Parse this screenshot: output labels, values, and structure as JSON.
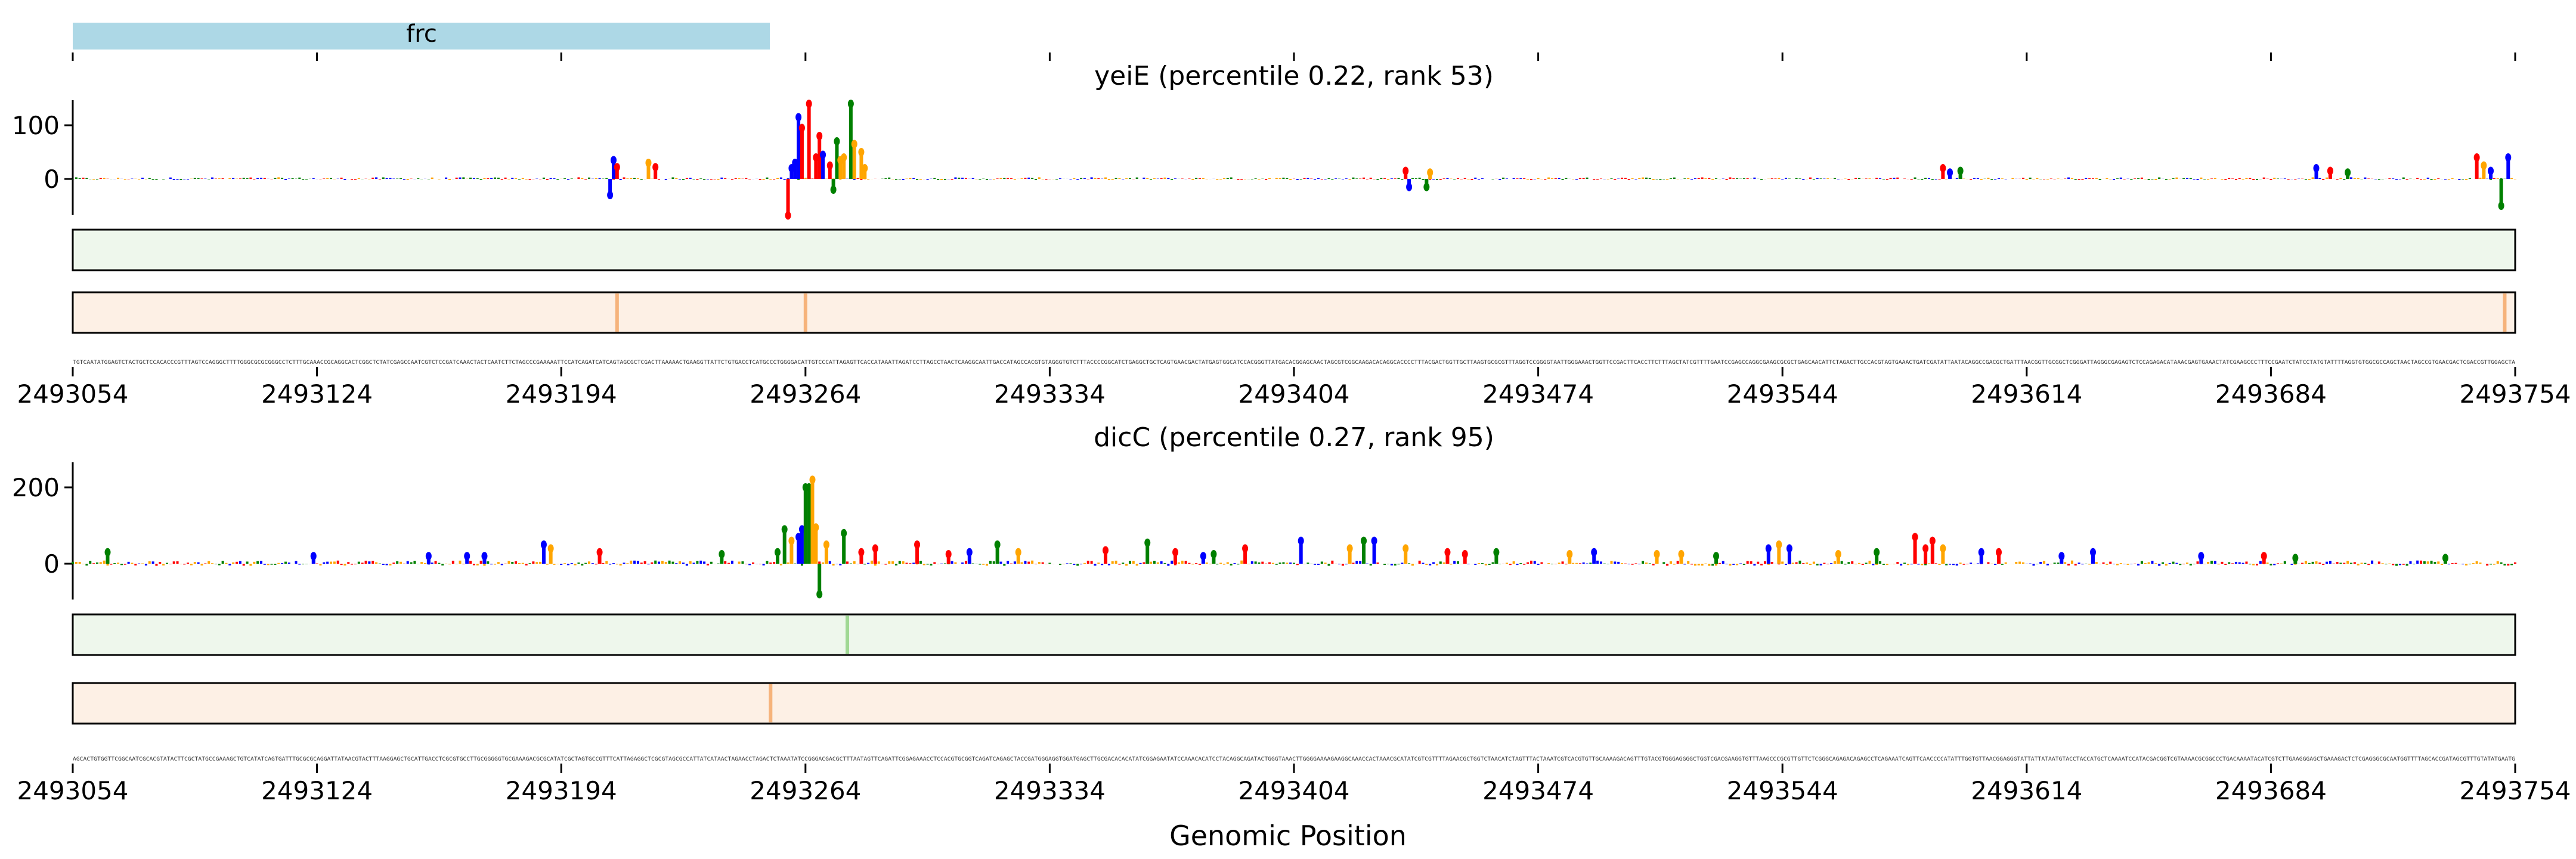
{
  "figure": {
    "annotation_track": {
      "label": "frc",
      "color": "#add8e6"
    },
    "xlabel": "Genomic Position"
  },
  "chart_data": [
    {
      "type": "line",
      "title": "yeiE (percentile 0.22, rank 53)",
      "xlabel": "",
      "ylabel": "",
      "xlim": [
        2493054,
        2493754
      ],
      "ylim": [
        -40,
        150
      ],
      "x_ticks": [
        2493054,
        2493124,
        2493194,
        2493264,
        2493334,
        2493404,
        2493474,
        2493544,
        2493614,
        2493684,
        2493754
      ],
      "y_ticks": [
        0,
        100
      ],
      "bases": [
        "A",
        "C",
        "G",
        "T"
      ],
      "base_colors": {
        "A": "#ff0000",
        "C": "#0000ff",
        "G": "#008000",
        "T": "#ffa500"
      },
      "peaks": [
        {
          "x": 2493208,
          "y": -30,
          "base": "C"
        },
        {
          "x": 2493209,
          "y": 35,
          "base": "C"
        },
        {
          "x": 2493210,
          "y": 22,
          "base": "A"
        },
        {
          "x": 2493219,
          "y": 30,
          "base": "T"
        },
        {
          "x": 2493221,
          "y": 22,
          "base": "A"
        },
        {
          "x": 2493259,
          "y": -68,
          "base": "A"
        },
        {
          "x": 2493260,
          "y": 20,
          "base": "C"
        },
        {
          "x": 2493261,
          "y": 30,
          "base": "C"
        },
        {
          "x": 2493262,
          "y": 115,
          "base": "C"
        },
        {
          "x": 2493263,
          "y": 95,
          "base": "A"
        },
        {
          "x": 2493265,
          "y": 140,
          "base": "A"
        },
        {
          "x": 2493267,
          "y": 40,
          "base": "A"
        },
        {
          "x": 2493268,
          "y": 80,
          "base": "A"
        },
        {
          "x": 2493269,
          "y": 45,
          "base": "C"
        },
        {
          "x": 2493271,
          "y": 25,
          "base": "A"
        },
        {
          "x": 2493272,
          "y": -20,
          "base": "G"
        },
        {
          "x": 2493273,
          "y": 70,
          "base": "G"
        },
        {
          "x": 2493274,
          "y": 35,
          "base": "T"
        },
        {
          "x": 2493275,
          "y": 40,
          "base": "T"
        },
        {
          "x": 2493277,
          "y": 140,
          "base": "G"
        },
        {
          "x": 2493278,
          "y": 65,
          "base": "T"
        },
        {
          "x": 2493280,
          "y": 50,
          "base": "T"
        },
        {
          "x": 2493281,
          "y": 20,
          "base": "T"
        },
        {
          "x": 2493436,
          "y": 15,
          "base": "A"
        },
        {
          "x": 2493437,
          "y": -15,
          "base": "C"
        },
        {
          "x": 2493442,
          "y": -15,
          "base": "G"
        },
        {
          "x": 2493443,
          "y": 12,
          "base": "T"
        },
        {
          "x": 2493590,
          "y": 20,
          "base": "A"
        },
        {
          "x": 2493592,
          "y": 12,
          "base": "C"
        },
        {
          "x": 2493595,
          "y": 15,
          "base": "G"
        },
        {
          "x": 2493697,
          "y": 20,
          "base": "C"
        },
        {
          "x": 2493701,
          "y": 15,
          "base": "A"
        },
        {
          "x": 2493706,
          "y": 12,
          "base": "G"
        },
        {
          "x": 2493743,
          "y": 40,
          "base": "A"
        },
        {
          "x": 2493745,
          "y": 25,
          "base": "T"
        },
        {
          "x": 2493747,
          "y": 15,
          "base": "C"
        },
        {
          "x": 2493750,
          "y": -50,
          "base": "G"
        },
        {
          "x": 2493752,
          "y": 40,
          "base": "C"
        }
      ],
      "heatmaps": [
        {
          "color": "#eef7ec",
          "hot": []
        },
        {
          "color": "#fdf0e5",
          "hot": [
            2493210,
            2493264,
            2493751
          ]
        }
      ]
    },
    {
      "type": "line",
      "title": "dicC (percentile 0.27, rank 95)",
      "xlabel": "",
      "ylabel": "",
      "xlim": [
        2493054,
        2493754
      ],
      "ylim": [
        -80,
        230
      ],
      "x_ticks": [
        2493054,
        2493124,
        2493194,
        2493264,
        2493334,
        2493404,
        2493474,
        2493544,
        2493614,
        2493684,
        2493754
      ],
      "y_ticks": [
        0,
        200
      ],
      "bases": [
        "A",
        "C",
        "G",
        "T"
      ],
      "base_colors": {
        "A": "#ff0000",
        "C": "#0000ff",
        "G": "#008000",
        "T": "#ffa500"
      },
      "peaks": [
        {
          "x": 2493064,
          "y": 30,
          "base": "G"
        },
        {
          "x": 2493123,
          "y": 20,
          "base": "C"
        },
        {
          "x": 2493156,
          "y": 20,
          "base": "C"
        },
        {
          "x": 2493167,
          "y": 20,
          "base": "C"
        },
        {
          "x": 2493172,
          "y": 20,
          "base": "C"
        },
        {
          "x": 2493189,
          "y": 50,
          "base": "C"
        },
        {
          "x": 2493191,
          "y": 40,
          "base": "T"
        },
        {
          "x": 2493205,
          "y": 30,
          "base": "A"
        },
        {
          "x": 2493240,
          "y": 25,
          "base": "G"
        },
        {
          "x": 2493256,
          "y": 30,
          "base": "G"
        },
        {
          "x": 2493258,
          "y": 90,
          "base": "G"
        },
        {
          "x": 2493260,
          "y": 60,
          "base": "T"
        },
        {
          "x": 2493262,
          "y": 70,
          "base": "C"
        },
        {
          "x": 2493263,
          "y": 90,
          "base": "C"
        },
        {
          "x": 2493264,
          "y": 200,
          "base": "G"
        },
        {
          "x": 2493265,
          "y": 200,
          "base": "G"
        },
        {
          "x": 2493266,
          "y": 220,
          "base": "T"
        },
        {
          "x": 2493267,
          "y": 95,
          "base": "T"
        },
        {
          "x": 2493268,
          "y": -80,
          "base": "G"
        },
        {
          "x": 2493270,
          "y": 50,
          "base": "T"
        },
        {
          "x": 2493275,
          "y": 80,
          "base": "G"
        },
        {
          "x": 2493280,
          "y": 30,
          "base": "A"
        },
        {
          "x": 2493284,
          "y": 40,
          "base": "A"
        },
        {
          "x": 2493296,
          "y": 50,
          "base": "A"
        },
        {
          "x": 2493305,
          "y": 25,
          "base": "A"
        },
        {
          "x": 2493311,
          "y": 30,
          "base": "C"
        },
        {
          "x": 2493319,
          "y": 50,
          "base": "G"
        },
        {
          "x": 2493325,
          "y": 30,
          "base": "T"
        },
        {
          "x": 2493350,
          "y": 35,
          "base": "A"
        },
        {
          "x": 2493362,
          "y": 55,
          "base": "G"
        },
        {
          "x": 2493370,
          "y": 30,
          "base": "A"
        },
        {
          "x": 2493378,
          "y": 20,
          "base": "C"
        },
        {
          "x": 2493381,
          "y": 25,
          "base": "G"
        },
        {
          "x": 2493390,
          "y": 40,
          "base": "A"
        },
        {
          "x": 2493406,
          "y": 60,
          "base": "C"
        },
        {
          "x": 2493420,
          "y": 40,
          "base": "T"
        },
        {
          "x": 2493424,
          "y": 60,
          "base": "G"
        },
        {
          "x": 2493427,
          "y": 60,
          "base": "C"
        },
        {
          "x": 2493436,
          "y": 40,
          "base": "T"
        },
        {
          "x": 2493448,
          "y": 30,
          "base": "A"
        },
        {
          "x": 2493453,
          "y": 25,
          "base": "A"
        },
        {
          "x": 2493462,
          "y": 30,
          "base": "G"
        },
        {
          "x": 2493483,
          "y": 25,
          "base": "T"
        },
        {
          "x": 2493490,
          "y": 30,
          "base": "C"
        },
        {
          "x": 2493508,
          "y": 25,
          "base": "T"
        },
        {
          "x": 2493515,
          "y": 25,
          "base": "T"
        },
        {
          "x": 2493525,
          "y": 20,
          "base": "G"
        },
        {
          "x": 2493540,
          "y": 40,
          "base": "C"
        },
        {
          "x": 2493543,
          "y": 50,
          "base": "T"
        },
        {
          "x": 2493546,
          "y": 40,
          "base": "C"
        },
        {
          "x": 2493560,
          "y": 25,
          "base": "T"
        },
        {
          "x": 2493571,
          "y": 30,
          "base": "G"
        },
        {
          "x": 2493582,
          "y": 70,
          "base": "A"
        },
        {
          "x": 2493585,
          "y": 40,
          "base": "A"
        },
        {
          "x": 2493587,
          "y": 60,
          "base": "A"
        },
        {
          "x": 2493590,
          "y": 40,
          "base": "T"
        },
        {
          "x": 2493601,
          "y": 30,
          "base": "C"
        },
        {
          "x": 2493606,
          "y": 30,
          "base": "A"
        },
        {
          "x": 2493624,
          "y": 20,
          "base": "C"
        },
        {
          "x": 2493633,
          "y": 30,
          "base": "C"
        },
        {
          "x": 2493664,
          "y": 20,
          "base": "C"
        },
        {
          "x": 2493682,
          "y": 20,
          "base": "A"
        },
        {
          "x": 2493691,
          "y": 15,
          "base": "G"
        },
        {
          "x": 2493734,
          "y": 15,
          "base": "G"
        }
      ],
      "heatmaps": [
        {
          "color": "#eef7ec",
          "hot": [
            2493276
          ]
        },
        {
          "color": "#fdf0e5",
          "hot": [
            2493254
          ]
        }
      ]
    }
  ]
}
